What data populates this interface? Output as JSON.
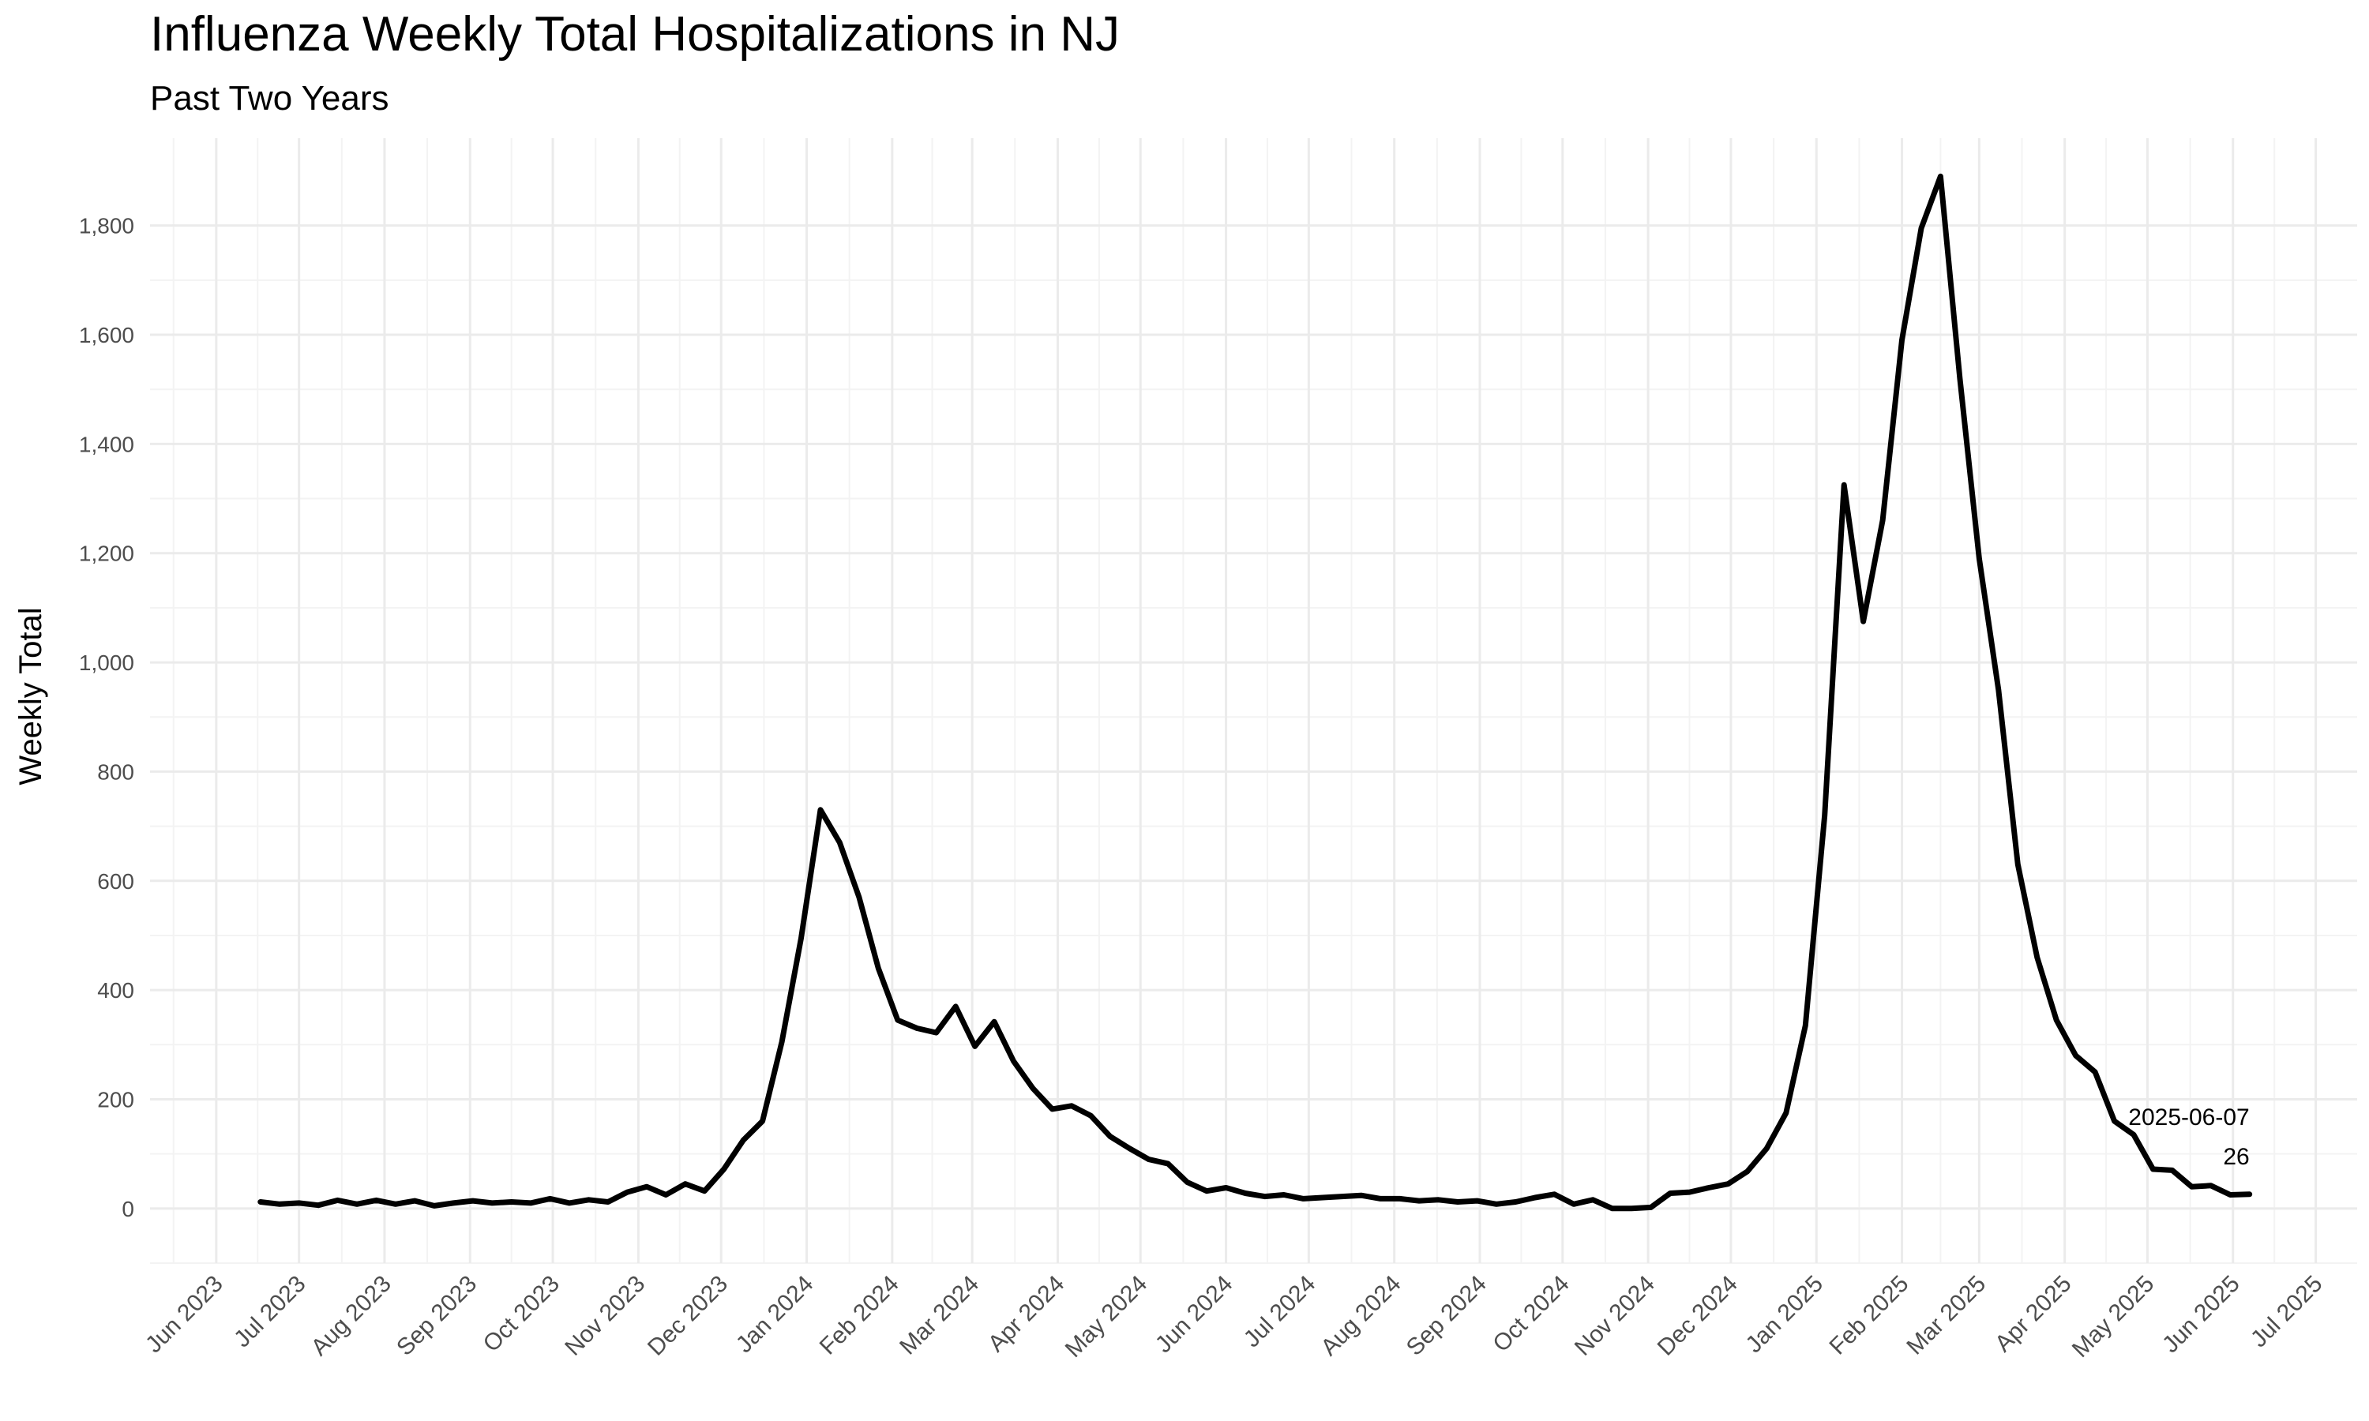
{
  "chart_data": {
    "type": "line",
    "title": "Influenza Weekly Total Hospitalizations in NJ",
    "subtitle": "Past Two Years",
    "xlabel": "",
    "ylabel": "Weekly Total",
    "x_axis": "date",
    "xlim": [
      "2023-05-08",
      "2025-07-16"
    ],
    "ylim": [
      -100,
      1960
    ],
    "y_ticks": [
      0,
      200,
      400,
      600,
      800,
      1000,
      1200,
      1400,
      1600,
      1800
    ],
    "y_tick_labels": [
      "0",
      "200",
      "400",
      "600",
      "800",
      "1,000",
      "1,200",
      "1,400",
      "1,600",
      "1,800"
    ],
    "x_ticks": [
      "2023-06-01",
      "2023-07-01",
      "2023-08-01",
      "2023-09-01",
      "2023-10-01",
      "2023-11-01",
      "2023-12-01",
      "2024-01-01",
      "2024-02-01",
      "2024-03-01",
      "2024-04-01",
      "2024-05-01",
      "2024-06-01",
      "2024-07-01",
      "2024-08-01",
      "2024-09-01",
      "2024-10-01",
      "2024-11-01",
      "2024-12-01",
      "2025-01-01",
      "2025-02-01",
      "2025-03-01",
      "2025-04-01",
      "2025-05-01",
      "2025-06-01",
      "2025-07-01"
    ],
    "x_tick_labels": [
      "Jun 2023",
      "Jul 2023",
      "Aug 2023",
      "Sep 2023",
      "Oct 2023",
      "Nov 2023",
      "Dec 2023",
      "Jan 2024",
      "Feb 2024",
      "Mar 2024",
      "Apr 2024",
      "May 2024",
      "Jun 2024",
      "Jul 2024",
      "Aug 2024",
      "Sep 2024",
      "Oct 2024",
      "Nov 2024",
      "Dec 2024",
      "Jan 2025",
      "Feb 2025",
      "Mar 2025",
      "Apr 2025",
      "May 2025",
      "Jun 2025",
      "Jul 2025"
    ],
    "grid": true,
    "line_color": "#000000",
    "series": [
      {
        "x": [
          "2023-06-17",
          "2023-06-24",
          "2023-07-01",
          "2023-07-08",
          "2023-07-15",
          "2023-07-22",
          "2023-07-29",
          "2023-08-05",
          "2023-08-12",
          "2023-08-19",
          "2023-08-26",
          "2023-09-02",
          "2023-09-09",
          "2023-09-16",
          "2023-09-23",
          "2023-09-30",
          "2023-10-07",
          "2023-10-14",
          "2023-10-21",
          "2023-10-28",
          "2023-11-04",
          "2023-11-11",
          "2023-11-18",
          "2023-11-25",
          "2023-12-02",
          "2023-12-09",
          "2023-12-16",
          "2023-12-23",
          "2023-12-30",
          "2024-01-06",
          "2024-01-13",
          "2024-01-20",
          "2024-01-27",
          "2024-02-03",
          "2024-02-10",
          "2024-02-17",
          "2024-02-24",
          "2024-03-02",
          "2024-03-09",
          "2024-03-16",
          "2024-03-23",
          "2024-03-30",
          "2024-04-06",
          "2024-04-13",
          "2024-04-20",
          "2024-04-27",
          "2024-05-04",
          "2024-05-11",
          "2024-05-18",
          "2024-05-25",
          "2024-06-01",
          "2024-06-08",
          "2024-06-15",
          "2024-06-22",
          "2024-06-29",
          "2024-07-06",
          "2024-07-13",
          "2024-07-20",
          "2024-07-27",
          "2024-08-03",
          "2024-08-10",
          "2024-08-17",
          "2024-08-24",
          "2024-08-31",
          "2024-09-07",
          "2024-09-14",
          "2024-09-21",
          "2024-09-28",
          "2024-10-05",
          "2024-10-12",
          "2024-10-19",
          "2024-10-26",
          "2024-11-02",
          "2024-11-09",
          "2024-11-16",
          "2024-11-23",
          "2024-11-30",
          "2024-12-07",
          "2024-12-14",
          "2024-12-21",
          "2024-12-28",
          "2025-01-04",
          "2025-01-11",
          "2025-01-18",
          "2025-01-25",
          "2025-02-01",
          "2025-02-08",
          "2025-02-15",
          "2025-02-22",
          "2025-03-01",
          "2025-03-08",
          "2025-03-15",
          "2025-03-22",
          "2025-03-29",
          "2025-04-05",
          "2025-04-12",
          "2025-04-19",
          "2025-04-26",
          "2025-05-03",
          "2025-05-10",
          "2025-05-17",
          "2025-05-24",
          "2025-05-31",
          "2025-06-07"
        ],
        "values": [
          12,
          8,
          10,
          6,
          15,
          8,
          15,
          8,
          14,
          5,
          10,
          14,
          10,
          12,
          10,
          18,
          10,
          16,
          12,
          30,
          40,
          25,
          45,
          32,
          72,
          125,
          160,
          305,
          495,
          730,
          670,
          570,
          440,
          345,
          330,
          322,
          370,
          297,
          342,
          270,
          220,
          182,
          188,
          170,
          132,
          110,
          90,
          82,
          48,
          32,
          38,
          28,
          22,
          25,
          18,
          20,
          22,
          24,
          18,
          18,
          14,
          16,
          12,
          14,
          8,
          12,
          20,
          26,
          8,
          16,
          0,
          0,
          2,
          28,
          30,
          38,
          45,
          68,
          110,
          175,
          335,
          720,
          1325,
          1075,
          1260,
          1590,
          1795,
          1890,
          1520,
          1190,
          950,
          630,
          460,
          345,
          280,
          250,
          160,
          135,
          72,
          70,
          40,
          42,
          25,
          26
        ]
      }
    ],
    "annotation": {
      "date_label": "2025-06-07",
      "value_label": "26"
    }
  }
}
